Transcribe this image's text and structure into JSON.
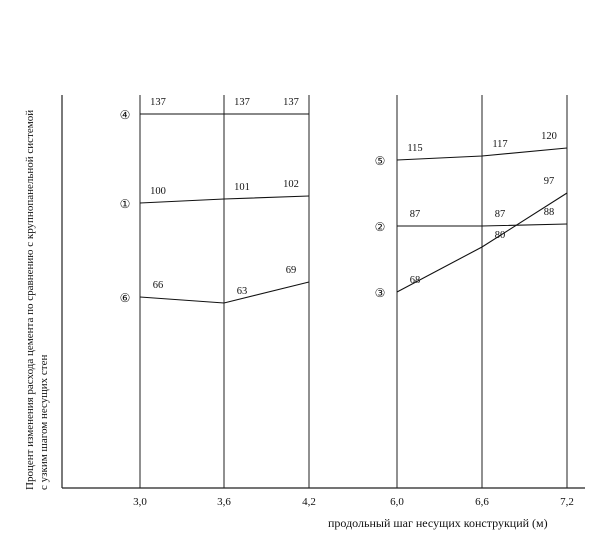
{
  "chart_data": {
    "type": "line",
    "title": "",
    "ylabel": "Процент изменения расхода цемента по сравнению с крупнопанельной системой с узким шагом несущих стен",
    "xlabel": "продольный шаг несущих конструкций (м)",
    "ylim": [
      0,
      180
    ],
    "grid": false,
    "groups": [
      {
        "x": [
          "3,0",
          "3,6",
          "4,2"
        ],
        "series": [
          {
            "marker": "④",
            "values": [
              137,
              137,
              137
            ]
          },
          {
            "marker": "①",
            "values": [
              100,
              101,
              102
            ]
          },
          {
            "marker": "⑥",
            "values": [
              66,
              63,
              69
            ]
          }
        ]
      },
      {
        "x": [
          "6,0",
          "6,6",
          "7,2"
        ],
        "series": [
          {
            "marker": "⑤",
            "values": [
              115,
              117,
              120
            ]
          },
          {
            "marker": "②",
            "values": [
              87,
              87,
              88
            ]
          },
          {
            "marker": "③",
            "values": [
              68,
              80,
              97
            ]
          }
        ]
      }
    ]
  }
}
